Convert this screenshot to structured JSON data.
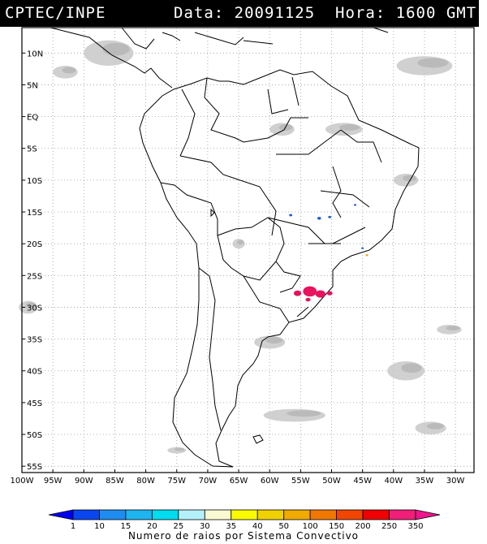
{
  "header": {
    "source": "CPTEC/INPE",
    "datetime": "Data: 20091125  Hora: 1600 GMT"
  },
  "map": {
    "lon_range": [
      -100,
      -27
    ],
    "lat_range": [
      -56,
      14
    ],
    "lat_ticks": [
      "10N",
      "5N",
      "EQ",
      "5S",
      "10S",
      "15S",
      "20S",
      "25S",
      "30S",
      "35S",
      "40S",
      "45S",
      "50S",
      "55S"
    ],
    "lon_ticks": [
      "100W",
      "95W",
      "90W",
      "85W",
      "80W",
      "75W",
      "70W",
      "65W",
      "60W",
      "55W",
      "50W",
      "45W",
      "40W",
      "35W",
      "30W"
    ],
    "lightning_clusters": [
      {
        "lon": -53.5,
        "lat": -27.5,
        "size": 2.2,
        "color": "#e8125f"
      },
      {
        "lon": -51.8,
        "lat": -27.9,
        "size": 1.6,
        "color": "#e8125f"
      },
      {
        "lon": -55.5,
        "lat": -27.8,
        "size": 1.2,
        "color": "#e8125f"
      },
      {
        "lon": -50.3,
        "lat": -27.8,
        "size": 0.9,
        "color": "#e8125f"
      },
      {
        "lon": -53.8,
        "lat": -28.8,
        "size": 0.8,
        "color": "#e8125f"
      },
      {
        "lon": -56.6,
        "lat": -15.5,
        "size": 0.5,
        "color": "#1e5adc"
      },
      {
        "lon": -52.0,
        "lat": -16.0,
        "size": 0.6,
        "color": "#1e5adc"
      },
      {
        "lon": -50.3,
        "lat": -15.8,
        "size": 0.5,
        "color": "#1e5adc"
      },
      {
        "lon": -46.2,
        "lat": -13.9,
        "size": 0.4,
        "color": "#1e5adc"
      },
      {
        "lon": -45.0,
        "lat": -20.7,
        "size": 0.4,
        "color": "#1e5adc"
      },
      {
        "lon": -44.3,
        "lat": -21.8,
        "size": 0.4,
        "color": "#f0a000"
      }
    ],
    "cloud_areas": [
      {
        "lon": -35,
        "lat": 8,
        "w": 9,
        "h": 3
      },
      {
        "lon": -86,
        "lat": 10,
        "w": 8,
        "h": 4
      },
      {
        "lon": -93,
        "lat": 7,
        "w": 4,
        "h": 2
      },
      {
        "lon": -38,
        "lat": -40,
        "w": 6,
        "h": 3
      },
      {
        "lon": -31,
        "lat": -33.5,
        "w": 4,
        "h": 1.5
      },
      {
        "lon": -34,
        "lat": -49,
        "w": 5,
        "h": 2
      },
      {
        "lon": -56,
        "lat": -47,
        "w": 10,
        "h": 2
      },
      {
        "lon": -60,
        "lat": -35.5,
        "w": 5,
        "h": 2
      },
      {
        "lon": -75,
        "lat": -52.5,
        "w": 3,
        "h": 1
      },
      {
        "lon": -48,
        "lat": -2,
        "w": 6,
        "h": 2
      },
      {
        "lon": -58,
        "lat": -2,
        "w": 4,
        "h": 2
      },
      {
        "lon": -38,
        "lat": -10,
        "w": 4,
        "h": 2
      },
      {
        "lon": -65,
        "lat": -20,
        "w": 2,
        "h": 1.5
      },
      {
        "lon": -99,
        "lat": -30,
        "w": 3,
        "h": 2
      }
    ]
  },
  "colorbar": {
    "label": "Numero de raios por Sistema Convectivo",
    "ticks": [
      "1",
      "10",
      "15",
      "20",
      "25",
      "30",
      "35",
      "40",
      "50",
      "100",
      "150",
      "200",
      "250",
      "350"
    ],
    "colors": [
      "#0000f0",
      "#0a46f0",
      "#1e8cf0",
      "#1eb4f0",
      "#00dcf0",
      "#b4f0fa",
      "#fafad2",
      "#fafa00",
      "#f0d200",
      "#f0aa00",
      "#f07800",
      "#f04600",
      "#f00000",
      "#f01e78",
      "#f0148c"
    ]
  }
}
